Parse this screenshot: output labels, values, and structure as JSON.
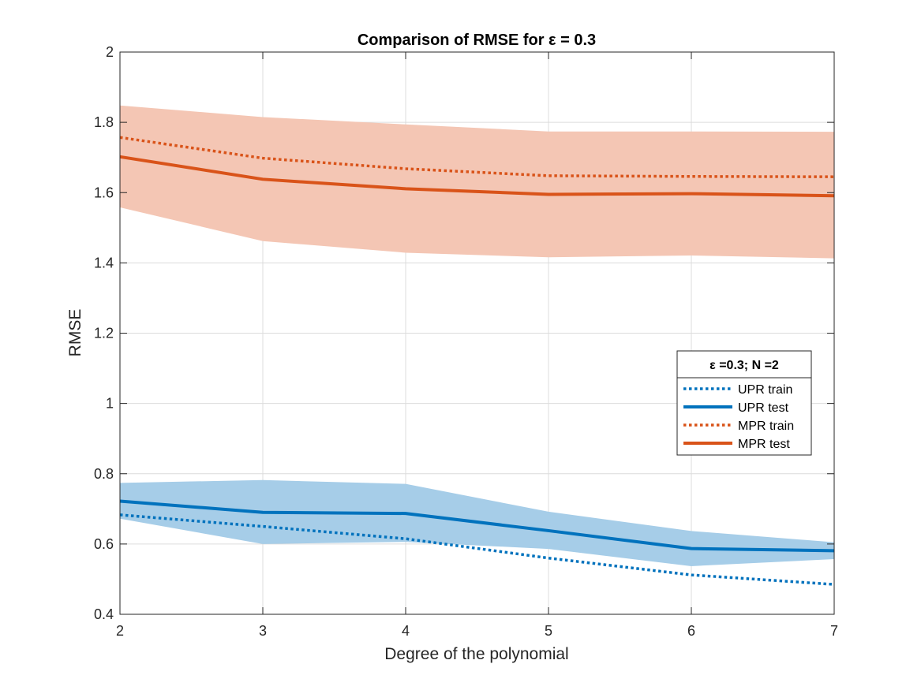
{
  "chart_data": {
    "type": "line",
    "title": "Comparison of RMSE for ε = 0.3",
    "xlabel": "Degree of the polynomial",
    "ylabel": "RMSE",
    "xlim": [
      2,
      7
    ],
    "ylim": [
      0.4,
      2
    ],
    "x_ticks": [
      2,
      3,
      4,
      5,
      6,
      7
    ],
    "y_ticks": [
      "0.4",
      "0.6",
      "0.8",
      "1",
      "1.2",
      "1.4",
      "1.6",
      "1.8",
      "2"
    ],
    "grid": true,
    "x": [
      2,
      3,
      4,
      5,
      6,
      7
    ],
    "series": [
      {
        "name": "UPR train",
        "style": "dotted",
        "color": "#0072BD",
        "values": [
          0.683,
          0.65,
          0.615,
          0.56,
          0.512,
          0.485
        ]
      },
      {
        "name": "UPR test",
        "style": "solid",
        "color": "#0072BD",
        "values": [
          0.722,
          0.69,
          0.687,
          0.638,
          0.587,
          0.581
        ],
        "band_lower": [
          0.672,
          0.6,
          0.606,
          0.586,
          0.537,
          0.557
        ],
        "band_upper": [
          0.774,
          0.782,
          0.771,
          0.692,
          0.637,
          0.605
        ],
        "band_color": "#A6CDE8"
      },
      {
        "name": "MPR train",
        "style": "dotted",
        "color": "#D95319",
        "values": [
          1.757,
          1.698,
          1.668,
          1.648,
          1.646,
          1.645
        ]
      },
      {
        "name": "MPR test",
        "style": "solid",
        "color": "#D95319",
        "values": [
          1.702,
          1.638,
          1.611,
          1.595,
          1.597,
          1.591
        ],
        "band_lower": [
          1.558,
          1.462,
          1.429,
          1.416,
          1.421,
          1.413
        ],
        "band_upper": [
          1.848,
          1.815,
          1.794,
          1.774,
          1.774,
          1.773
        ],
        "band_color": "#F4C6B4"
      }
    ],
    "legend": {
      "title": "ε =0.3; N =2",
      "position": "east",
      "entries": [
        "UPR train",
        "UPR test",
        "MPR train",
        "MPR test"
      ]
    }
  }
}
